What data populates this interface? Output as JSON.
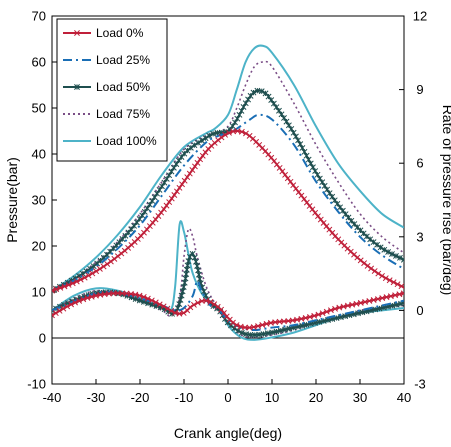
{
  "chart_data": {
    "type": "line",
    "xlabel": "Crank angle(deg)",
    "ylabel_left": "Pressure(bar)",
    "ylabel_right": "Rate of pressure rise (bar/deg)",
    "xlim": [
      -40,
      40
    ],
    "ylim_left": [
      -10,
      70
    ],
    "ylim_right": [
      -3,
      12
    ],
    "x_ticks": [
      -40,
      -30,
      -20,
      -10,
      0,
      10,
      20,
      30,
      40
    ],
    "y_ticks_left": [
      -10,
      0,
      10,
      20,
      30,
      40,
      50,
      60,
      70
    ],
    "y_ticks_right": [
      -3,
      0,
      3,
      6,
      9,
      12
    ],
    "grid": false,
    "legend_position": "top-left",
    "series": [
      {
        "name": "Load 0%",
        "color": "#c0203a",
        "dash": "solid",
        "marker": "x",
        "pressure": [
          [
            -40,
            10.3
          ],
          [
            -35,
            12
          ],
          [
            -30,
            14.5
          ],
          [
            -25,
            17.8
          ],
          [
            -20,
            22
          ],
          [
            -15,
            27.5
          ],
          [
            -10,
            34
          ],
          [
            -5,
            40.5
          ],
          [
            -2,
            43.2
          ],
          [
            0,
            44.5
          ],
          [
            2,
            45
          ],
          [
            4,
            44.5
          ],
          [
            6,
            43
          ],
          [
            10,
            39
          ],
          [
            15,
            33
          ],
          [
            20,
            27
          ],
          [
            25,
            21.5
          ],
          [
            30,
            17
          ],
          [
            35,
            13.5
          ],
          [
            40,
            11
          ]
        ],
        "rate": [
          [
            -40,
            -0.2
          ],
          [
            -35,
            0.3
          ],
          [
            -30,
            0.6
          ],
          [
            -25,
            0.7
          ],
          [
            -20,
            0.6
          ],
          [
            -15,
            0.2
          ],
          [
            -12,
            -0.1
          ],
          [
            -10,
            -0.1
          ],
          [
            -8,
            0.2
          ],
          [
            -5,
            0.4
          ],
          [
            -2,
            0.1
          ],
          [
            0,
            -0.3
          ],
          [
            2,
            -0.6
          ],
          [
            5,
            -0.7
          ],
          [
            10,
            -0.5
          ],
          [
            15,
            -0.4
          ],
          [
            20,
            -0.2
          ],
          [
            25,
            0.1
          ],
          [
            30,
            0.3
          ],
          [
            35,
            0.5
          ],
          [
            40,
            0.7
          ]
        ]
      },
      {
        "name": "Load 25%",
        "color": "#1a6eb5",
        "dash": "dashdot",
        "marker": "",
        "pressure": [
          [
            -40,
            10.3
          ],
          [
            -35,
            12.5
          ],
          [
            -30,
            15.5
          ],
          [
            -25,
            19.5
          ],
          [
            -20,
            24.5
          ],
          [
            -15,
            31
          ],
          [
            -10,
            37.5
          ],
          [
            -5,
            42.5
          ],
          [
            -2,
            44
          ],
          [
            0,
            44.5
          ],
          [
            2,
            45.5
          ],
          [
            5,
            47.5
          ],
          [
            7,
            48.5
          ],
          [
            10,
            47.5
          ],
          [
            15,
            42
          ],
          [
            20,
            34
          ],
          [
            25,
            27.5
          ],
          [
            30,
            22
          ],
          [
            35,
            18
          ],
          [
            40,
            15
          ]
        ],
        "rate": [
          [
            -40,
            0
          ],
          [
            -30,
            0.7
          ],
          [
            -25,
            0.7
          ],
          [
            -20,
            0.5
          ],
          [
            -15,
            0.2
          ],
          [
            -12,
            0
          ],
          [
            -10,
            0.1
          ],
          [
            -8,
            0.6
          ],
          [
            -7,
            1.2
          ],
          [
            -6,
            0.8
          ],
          [
            -4,
            0.2
          ],
          [
            -2,
            0
          ],
          [
            0,
            -0.4
          ],
          [
            3,
            -0.7
          ],
          [
            6,
            -0.8
          ],
          [
            10,
            -0.7
          ],
          [
            15,
            -0.6
          ],
          [
            20,
            -0.4
          ],
          [
            25,
            -0.2
          ],
          [
            30,
            0
          ],
          [
            35,
            0.2
          ],
          [
            40,
            0.4
          ]
        ]
      },
      {
        "name": "Load 50%",
        "color": "#1f4f4f",
        "dash": "solid",
        "marker": "star",
        "pressure": [
          [
            -40,
            10.3
          ],
          [
            -35,
            12.8
          ],
          [
            -30,
            16
          ],
          [
            -25,
            20.5
          ],
          [
            -20,
            26
          ],
          [
            -15,
            33
          ],
          [
            -10,
            40
          ],
          [
            -5,
            43.5
          ],
          [
            -3,
            44.5
          ],
          [
            0,
            45
          ],
          [
            2,
            47.5
          ],
          [
            4,
            51
          ],
          [
            6,
            53.5
          ],
          [
            8,
            53.5
          ],
          [
            10,
            51.5
          ],
          [
            15,
            44.5
          ],
          [
            20,
            36
          ],
          [
            25,
            29
          ],
          [
            30,
            23.5
          ],
          [
            35,
            19.5
          ],
          [
            40,
            17
          ]
        ],
        "rate": [
          [
            -40,
            0
          ],
          [
            -35,
            0.4
          ],
          [
            -30,
            0.7
          ],
          [
            -25,
            0.7
          ],
          [
            -20,
            0.4
          ],
          [
            -15,
            0.1
          ],
          [
            -12,
            -0.1
          ],
          [
            -10,
            1
          ],
          [
            -9,
            2
          ],
          [
            -8,
            2.3
          ],
          [
            -7,
            1.8
          ],
          [
            -6,
            1
          ],
          [
            -4,
            0.3
          ],
          [
            -2,
            0
          ],
          [
            0,
            -0.5
          ],
          [
            3,
            -0.9
          ],
          [
            6,
            -1
          ],
          [
            10,
            -0.9
          ],
          [
            15,
            -0.7
          ],
          [
            20,
            -0.5
          ],
          [
            25,
            -0.3
          ],
          [
            30,
            -0.1
          ],
          [
            35,
            0.1
          ],
          [
            40,
            0.3
          ]
        ]
      },
      {
        "name": "Load 75%",
        "color": "#7a4d86",
        "dash": "dotted",
        "marker": "",
        "pressure": [
          [
            -40,
            10.3
          ],
          [
            -35,
            13
          ],
          [
            -30,
            16.5
          ],
          [
            -25,
            21
          ],
          [
            -20,
            27
          ],
          [
            -15,
            34
          ],
          [
            -10,
            41
          ],
          [
            -5,
            44
          ],
          [
            -3,
            44.5
          ],
          [
            0,
            46
          ],
          [
            2,
            50
          ],
          [
            4,
            55
          ],
          [
            6,
            59
          ],
          [
            8,
            60
          ],
          [
            10,
            59
          ],
          [
            15,
            51
          ],
          [
            20,
            42
          ],
          [
            25,
            34
          ],
          [
            30,
            27
          ],
          [
            35,
            22
          ],
          [
            40,
            18.5
          ]
        ],
        "rate": [
          [
            -40,
            0
          ],
          [
            -35,
            0.5
          ],
          [
            -30,
            0.8
          ],
          [
            -25,
            0.7
          ],
          [
            -20,
            0.4
          ],
          [
            -15,
            0
          ],
          [
            -13,
            -0.2
          ],
          [
            -11,
            0.5
          ],
          [
            -10,
            2.2
          ],
          [
            -9,
            3.3
          ],
          [
            -8,
            3
          ],
          [
            -7,
            2.2
          ],
          [
            -5,
            1
          ],
          [
            -3,
            0.3
          ],
          [
            0,
            -0.5
          ],
          [
            3,
            -1
          ],
          [
            6,
            -1.1
          ],
          [
            10,
            -1
          ],
          [
            15,
            -0.8
          ],
          [
            20,
            -0.5
          ],
          [
            25,
            -0.3
          ],
          [
            30,
            0
          ],
          [
            35,
            0.1
          ],
          [
            40,
            0.2
          ]
        ]
      },
      {
        "name": "Load 100%",
        "color": "#4db3c8",
        "dash": "solid",
        "marker": "",
        "pressure": [
          [
            -40,
            10.3
          ],
          [
            -35,
            13.5
          ],
          [
            -30,
            17.5
          ],
          [
            -25,
            22.5
          ],
          [
            -20,
            28.5
          ],
          [
            -15,
            35.5
          ],
          [
            -10,
            41.5
          ],
          [
            -5,
            44.5
          ],
          [
            -3,
            45.5
          ],
          [
            0,
            48.5
          ],
          [
            2,
            54
          ],
          [
            4,
            60
          ],
          [
            6,
            63
          ],
          [
            8,
            63.5
          ],
          [
            10,
            62
          ],
          [
            15,
            55
          ],
          [
            20,
            46
          ],
          [
            25,
            38
          ],
          [
            30,
            32
          ],
          [
            35,
            27
          ],
          [
            40,
            24
          ]
        ],
        "rate": [
          [
            -40,
            0
          ],
          [
            -35,
            0.6
          ],
          [
            -30,
            0.9
          ],
          [
            -25,
            0.8
          ],
          [
            -20,
            0.5
          ],
          [
            -15,
            0.1
          ],
          [
            -13,
            0
          ],
          [
            -12,
            1
          ],
          [
            -11,
            3.5
          ],
          [
            -10,
            3.2
          ],
          [
            -9,
            2.3
          ],
          [
            -8,
            1.5
          ],
          [
            -6,
            0.7
          ],
          [
            -4,
            0.3
          ],
          [
            -2,
            0.1
          ],
          [
            0,
            -0.6
          ],
          [
            3,
            -1.1
          ],
          [
            6,
            -1.2
          ],
          [
            10,
            -1.1
          ],
          [
            15,
            -0.9
          ],
          [
            20,
            -0.6
          ],
          [
            25,
            -0.3
          ],
          [
            30,
            -0.1
          ],
          [
            35,
            0
          ],
          [
            40,
            0.1
          ]
        ]
      }
    ]
  }
}
